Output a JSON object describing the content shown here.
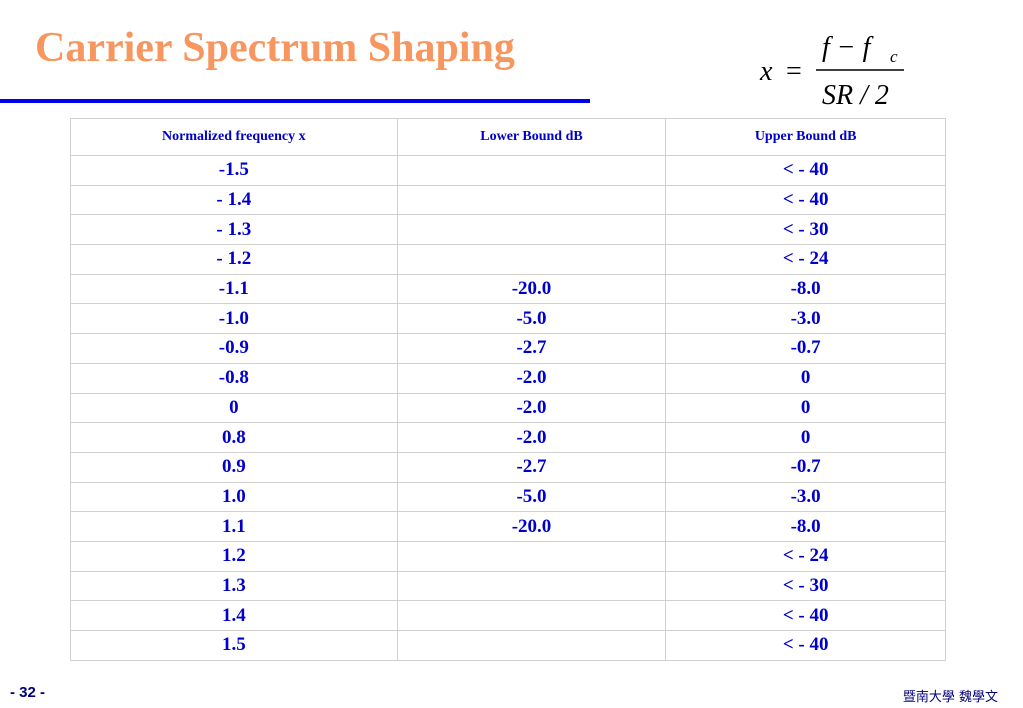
{
  "title": "Carrier Spectrum Shaping",
  "formula": {
    "lhs": "x",
    "eq": "=",
    "numerator": "f − f",
    "numerator_sub": "c",
    "denominator": "SR / 2"
  },
  "table": {
    "headers": [
      "Normalized frequency  x",
      "Lower Bound dB",
      "Upper Bound  dB"
    ],
    "rows": [
      [
        "-1.5",
        null,
        "< - 40"
      ],
      [
        "- 1.4",
        null,
        "< - 40"
      ],
      [
        "- 1.3",
        null,
        "< - 30"
      ],
      [
        "- 1.2",
        null,
        "< - 24"
      ],
      [
        "-1.1",
        "-20.0",
        "-8.0"
      ],
      [
        "-1.0",
        "-5.0",
        "-3.0"
      ],
      [
        "-0.9",
        "-2.7",
        "-0.7"
      ],
      [
        "-0.8",
        "-2.0",
        "0"
      ],
      [
        "0",
        "-2.0",
        "0"
      ],
      [
        "0.8",
        "-2.0",
        "0"
      ],
      [
        "0.9",
        "-2.7",
        "-0.7"
      ],
      [
        "1.0",
        "-5.0",
        "-3.0"
      ],
      [
        "1.1",
        "-20.0",
        "-8.0"
      ],
      [
        "1.2",
        null,
        "< - 24"
      ],
      [
        "1.3",
        null,
        "< - 30"
      ],
      [
        "1.4",
        null,
        "< - 40"
      ],
      [
        "1.5",
        null,
        "< - 40"
      ]
    ]
  },
  "footer": {
    "page": "- 32 -",
    "author": "暨南大學  魏學文"
  }
}
